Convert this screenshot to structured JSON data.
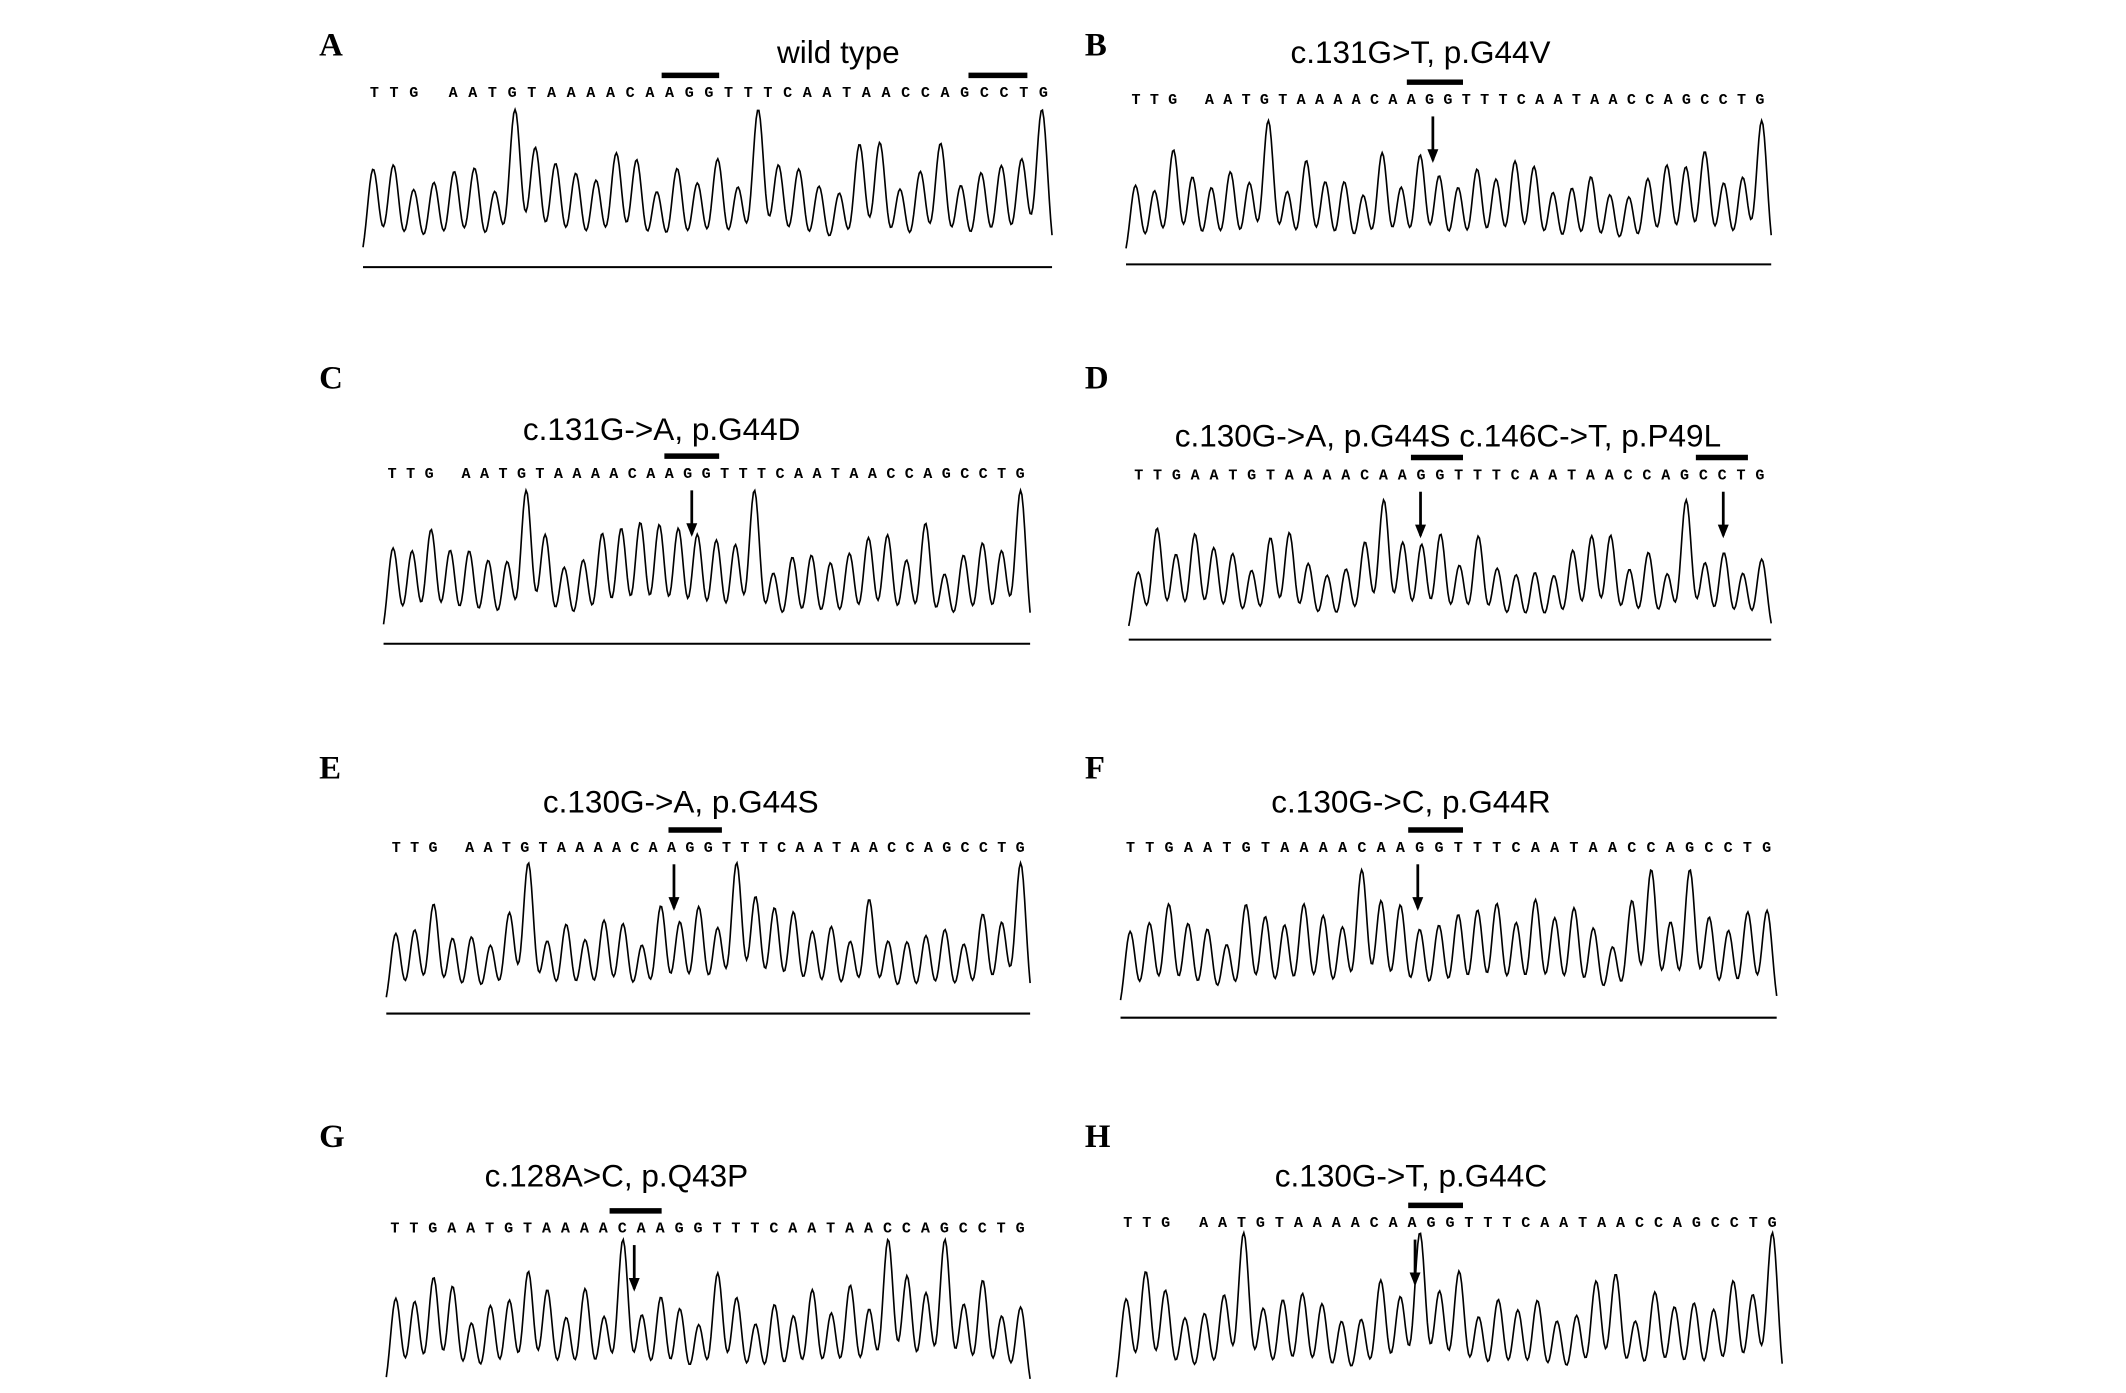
{
  "panels": [
    {
      "label": "A",
      "title": "wild type",
      "sequence": "TTG AATGTAAAACAAGGTTTCAATAACCAGCCTG"
    },
    {
      "label": "B",
      "title": "c.131G>T, p.G44V",
      "sequence": "TTG AATGTAAAACAAGGTTTCAATAACCAGCCTG"
    },
    {
      "label": "C",
      "title": "c.131G->A, p.G44D",
      "sequence": "TTG AATGTAAAACAAGGTTTCAATAACCAGCCTG"
    },
    {
      "label": "D",
      "title": "c.130G->A, p.G44S  c.146C->T, p.P49L",
      "sequence": "TTGAATGTAAAACAAGGTTTCAATAACCAGCCTG"
    },
    {
      "label": "E",
      "title": "c.130G->A, p.G44S",
      "sequence": "TTG AATGTAAAACAAGGTTTCAATAACCAGCCTG"
    },
    {
      "label": "F",
      "title": "c.130G->C, p.G44R",
      "sequence": "TTGAATGTAAAACAAGGTTTCAATAACCAGCCTG"
    },
    {
      "label": "G",
      "title": "c.128A>C, p.Q43P",
      "sequence": "TTGAATGTAAAACAAGGTTTCAATAACCAGCCTG"
    },
    {
      "label": "H",
      "title": "c.130G->T, p.G44C",
      "sequence": "TTG AATGTAAAACAAGGTTTCAATAACCAGCCTG"
    }
  ]
}
